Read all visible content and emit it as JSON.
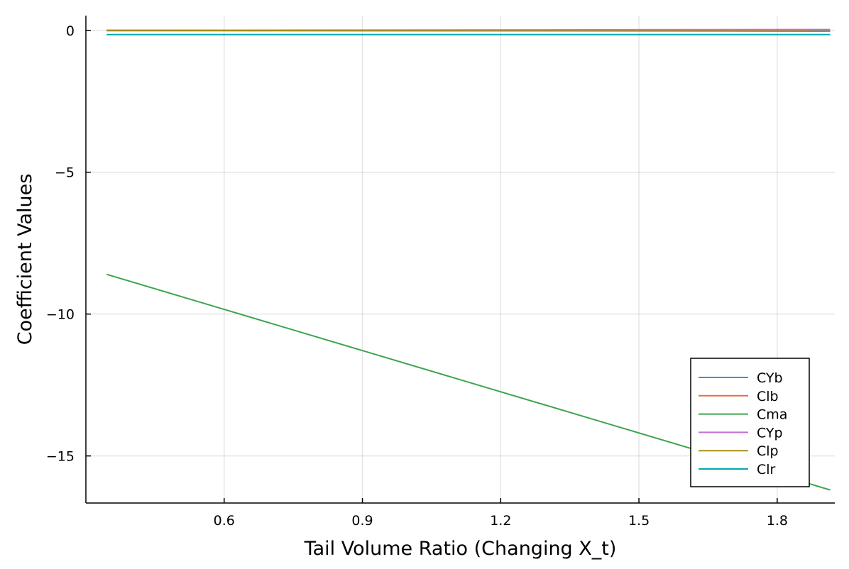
{
  "chart_data": {
    "type": "line",
    "title": "",
    "xlabel": "Tail Volume Ratio (Changing X_t)",
    "ylabel": "Coefficient Values",
    "xlim": [
      0.3,
      1.925
    ],
    "ylim": [
      -16.66,
      0.52
    ],
    "xticks": [
      0.6,
      0.9,
      1.2,
      1.5,
      1.8
    ],
    "xtick_labels": [
      "0.6",
      "0.9",
      "1.2",
      "1.5",
      "1.8"
    ],
    "yticks": [
      0,
      -5,
      -10,
      -15
    ],
    "ytick_labels": [
      "0",
      "−5",
      "−10",
      "−15"
    ],
    "grid": true,
    "legend_position": "bottom-right",
    "series": [
      {
        "name": "CYb",
        "color": "#009AFA",
        "x": [
          0.345,
          1.915
        ],
        "y": [
          -0.01,
          -0.01
        ]
      },
      {
        "name": "Clb",
        "color": "#E36F47",
        "x": [
          0.345,
          1.915
        ],
        "y": [
          0.0,
          -0.02
        ]
      },
      {
        "name": "Cma",
        "color": "#3EA44E",
        "x": [
          0.345,
          1.915
        ],
        "y": [
          -8.6,
          -16.2
        ]
      },
      {
        "name": "CYp",
        "color": "#C371D2",
        "x": [
          0.345,
          1.915
        ],
        "y": [
          0.0,
          0.03
        ]
      },
      {
        "name": "Clp",
        "color": "#AC8D18",
        "x": [
          0.345,
          1.915
        ],
        "y": [
          0.0,
          -0.03
        ]
      },
      {
        "name": "Clr",
        "color": "#00A9AD",
        "x": [
          0.345,
          1.915
        ],
        "y": [
          -0.15,
          -0.15
        ]
      }
    ]
  }
}
